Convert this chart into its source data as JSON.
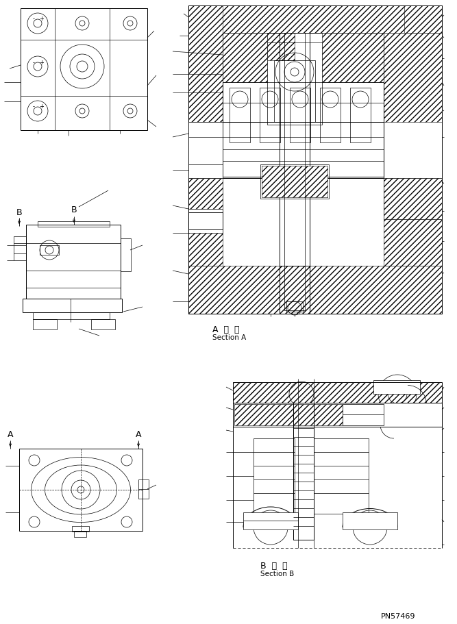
{
  "background_color": "#ffffff",
  "fig_width": 6.67,
  "fig_height": 9.11,
  "dpi": 100,
  "section_a_label_jp": "A  断  面",
  "section_a_label_en": "Section A",
  "section_b_label_jp": "B  断  面",
  "section_b_label_en": "Section B",
  "part_number": "PN57469",
  "line_color": "#000000",
  "bg": "#ffffff"
}
